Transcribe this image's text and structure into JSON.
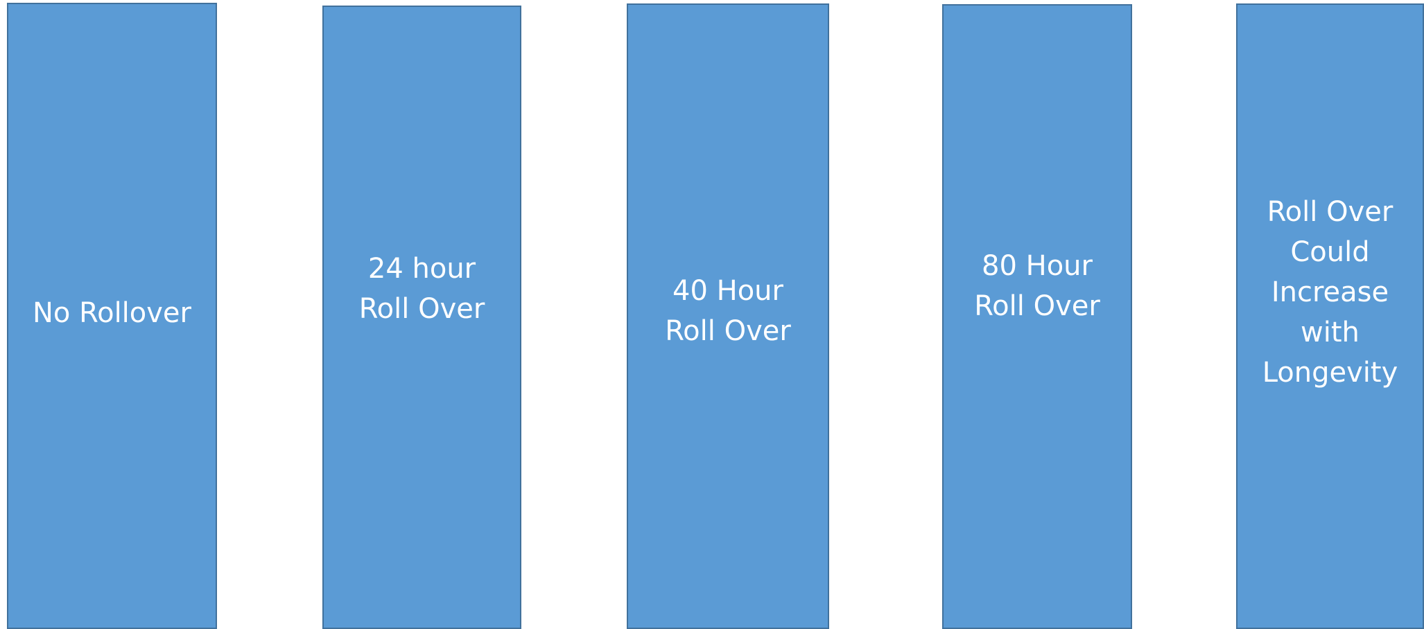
{
  "boxes": [
    {
      "label": "No Rollover"
    },
    {
      "label": "24 hour\nRoll Over"
    },
    {
      "label": "40 Hour\nRoll  Over"
    },
    {
      "label": "80 Hour\nRoll Over"
    },
    {
      "label": "Roll Over\nCould\nIncrease\nwith\nLongevity"
    }
  ],
  "colors": {
    "box_fill": "#5b9bd5",
    "box_border": "#41719c",
    "text": "#ffffff",
    "background": "#ffffff"
  }
}
